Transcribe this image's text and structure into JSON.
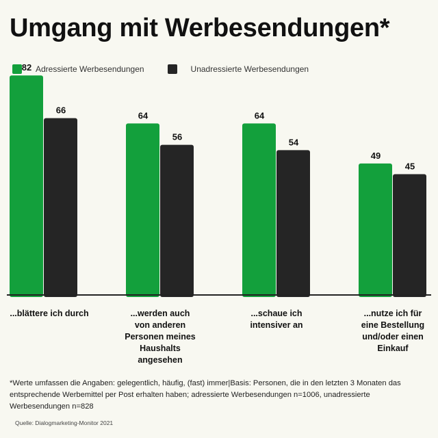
{
  "title": "Umgang mit Werbesendungen*",
  "colors": {
    "addressed": "#13a03c",
    "unaddressed": "#252525",
    "axis": "#222222"
  },
  "chart_data": {
    "type": "bar",
    "title": "Umgang mit Werbesendungen*",
    "categories": [
      "...blättere ich durch",
      "...werden auch von anderen Personen meines Haushalts angesehen",
      "...schaue ich intensiver an",
      "...nutze ich für eine Bestellung und/oder einen Einkauf"
    ],
    "series": [
      {
        "name": "Adressierte Werbesendungen",
        "color": "#13a03c",
        "values": [
          82,
          64,
          64,
          49
        ]
      },
      {
        "name": "Unadressierte Werbesendungen",
        "color": "#252525",
        "values": [
          66,
          56,
          54,
          45
        ]
      }
    ],
    "ylim": [
      0,
      100
    ],
    "grid": false,
    "legend": "top-left",
    "xlabel": "",
    "ylabel": ""
  },
  "footnote": "*Werte  umfassen die Angaben: gelegentlich, häufig, (fast) immer|Basis: Personen, die in den letzten 3 Monaten das entsprechende Werbemittel per Post erhalten haben; adressierte Werbesendungen n=1006, unadressierte Werbesendungen n=828",
  "source": "Quelle: Dialogmarketing-Monitor 2021"
}
